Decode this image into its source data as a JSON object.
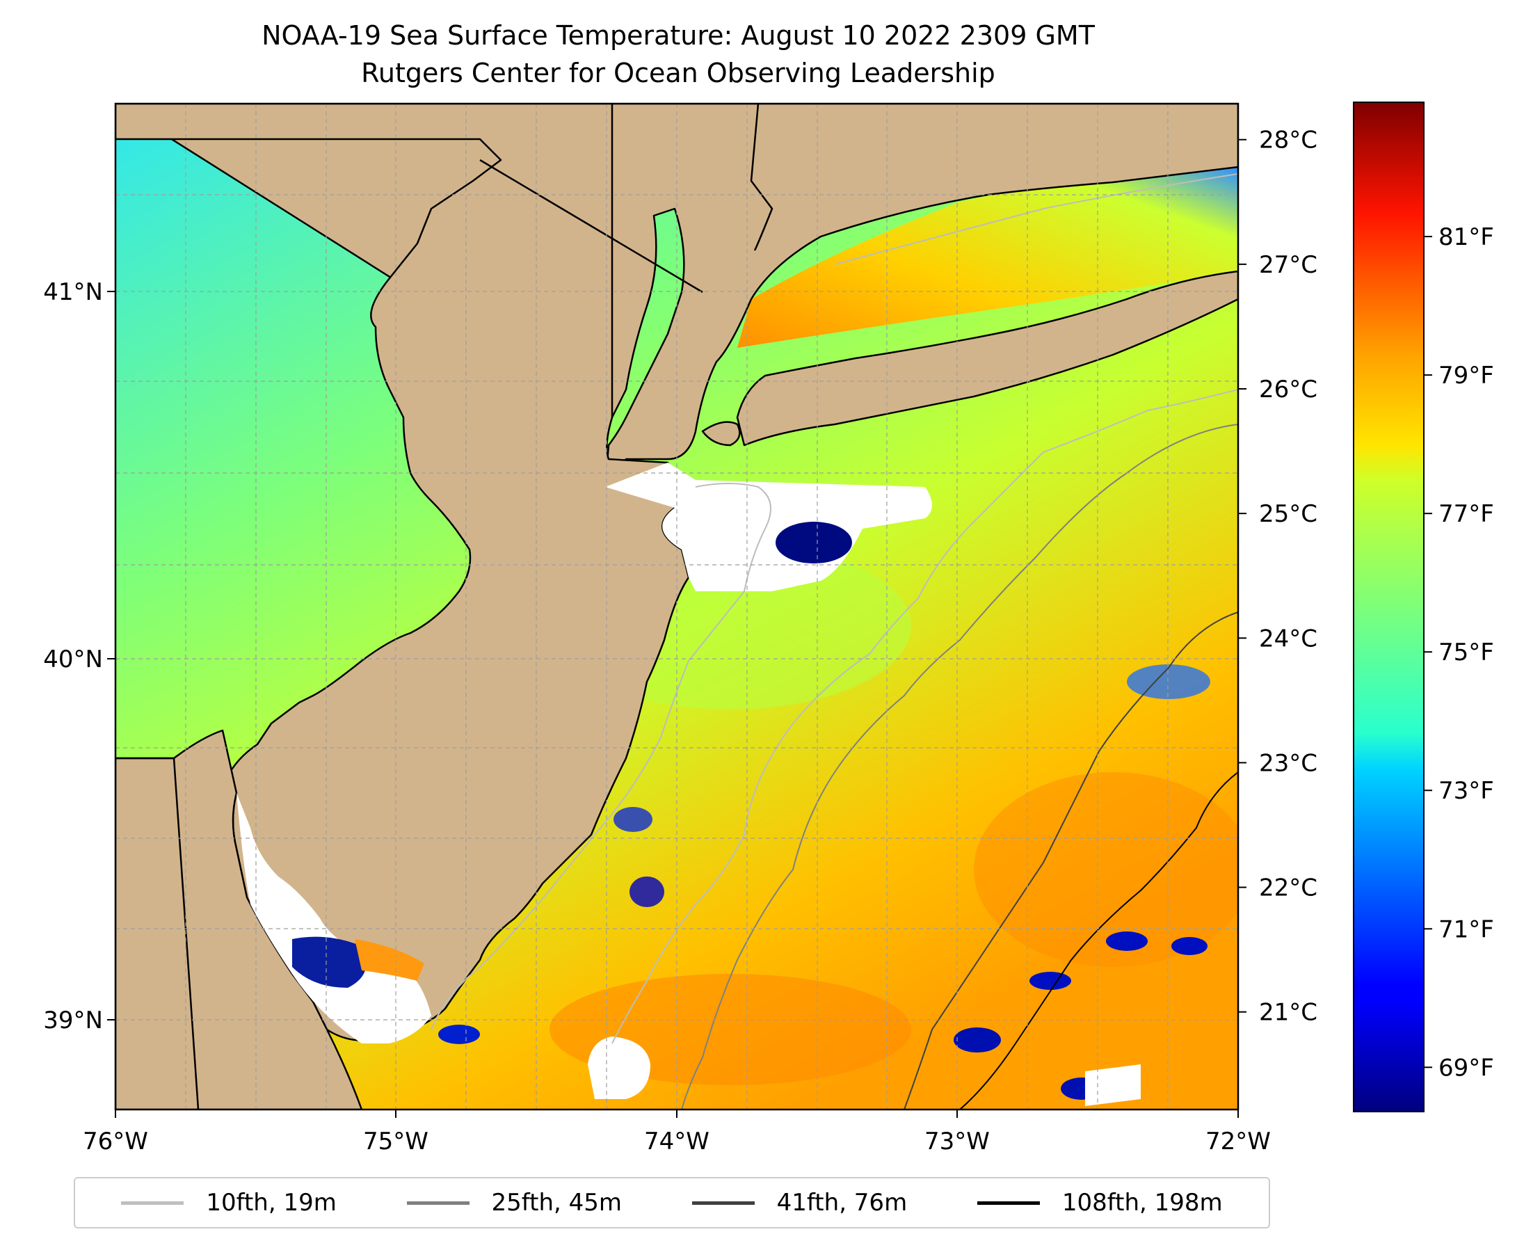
{
  "title": {
    "line1": "NOAA-19 Sea Surface Temperature: August 10 2022 2309 GMT",
    "line2": "Rutgers Center for Ocean Observing Leadership"
  },
  "map": {
    "lon_range": [
      -76,
      -72
    ],
    "lat_range": [
      38.75,
      41.5
    ],
    "lon_ticks": [
      "76°W",
      "75°W",
      "74°W",
      "73°W",
      "72°W"
    ],
    "lat_ticks": [
      "39°N",
      "40°N",
      "41°N"
    ],
    "gridlines": true,
    "land_color": "#d2b48c",
    "no_data_color": "#ffffff",
    "colormap": "jet"
  },
  "colorbar": {
    "celsius_ticks": [
      "21°C",
      "22°C",
      "23°C",
      "24°C",
      "25°C",
      "26°C",
      "27°C",
      "28°C"
    ],
    "fahrenheit_ticks": [
      "69°F",
      "71°F",
      "73°F",
      "75°F",
      "77°F",
      "79°F",
      "81°F"
    ],
    "range_c": [
      20.2,
      28.3
    ]
  },
  "legend": {
    "items": [
      {
        "label": "10fth, 19m",
        "color": "#bfbfbf"
      },
      {
        "label": "25fth, 45m",
        "color": "#808080"
      },
      {
        "label": "41fth, 76m",
        "color": "#404040"
      },
      {
        "label": "108fth, 198m",
        "color": "#000000"
      }
    ]
  }
}
